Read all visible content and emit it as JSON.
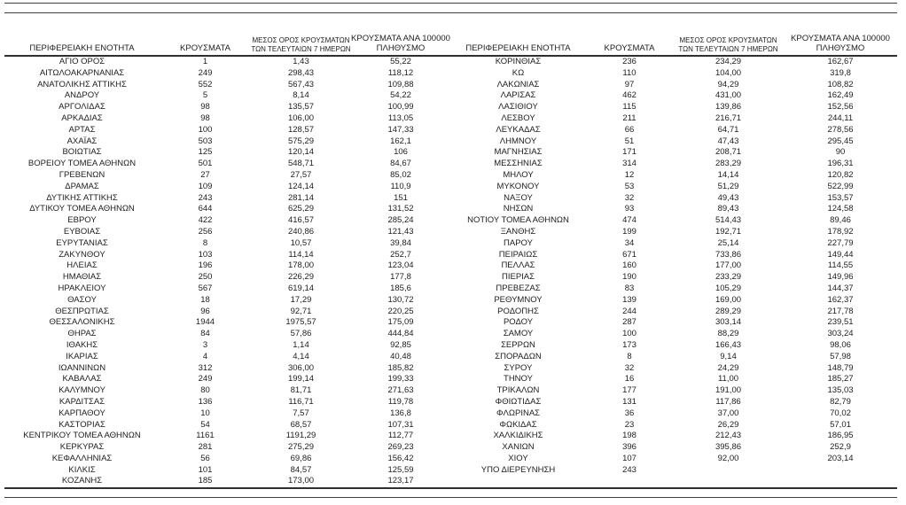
{
  "page": {
    "background_color": "#ffffff",
    "text_color": "#1d1d1d",
    "rule_color": "#3f3f3f"
  },
  "table": {
    "headers": {
      "region": "ΠΕΡΙΦΕΡΕΙΑΚΗ ΕΝΟΤΗΤΑ",
      "cases": "ΚΡΟΥΣΜΑΤΑ",
      "avg7_line1": "ΜΕΣΟΣ ΟΡΟΣ ΚΡΟΥΣΜΑΤΩΝ",
      "avg7_line2": "ΤΩΝ ΤΕΛΕΥΤΑΙΩΝ 7 ΗΜΕΡΩΝ",
      "per100k_line1": "ΚΡΟΥΣΜΑΤΑ ΑΝΑ 100000",
      "per100k_line2": "ΠΛΗΘΥΣΜΟ"
    },
    "left_rows": [
      [
        "ΑΓΙΟ ΟΡΟΣ",
        "1",
        "1,43",
        "55,22"
      ],
      [
        "ΑΙΤΩΛΟΑΚΑΡΝΑΝΙΑΣ",
        "249",
        "298,43",
        "118,12"
      ],
      [
        "ΑΝΑΤΟΛΙΚΗΣ ΑΤΤΙΚΗΣ",
        "552",
        "567,43",
        "109,88"
      ],
      [
        "ΑΝΔΡΟΥ",
        "5",
        "8,14",
        "54,22"
      ],
      [
        "ΑΡΓΟΛΙΔΑΣ",
        "98",
        "135,57",
        "100,99"
      ],
      [
        "ΑΡΚΑΔΙΑΣ",
        "98",
        "106,00",
        "113,05"
      ],
      [
        "ΑΡΤΑΣ",
        "100",
        "128,57",
        "147,33"
      ],
      [
        "ΑΧΑΪΑΣ",
        "503",
        "575,29",
        "162,1"
      ],
      [
        "ΒΟΙΩΤΙΑΣ",
        "125",
        "120,14",
        "106"
      ],
      [
        "ΒΟΡΕΙΟΥ ΤΟΜΕΑ ΑΘΗΝΩΝ",
        "501",
        "548,71",
        "84,67"
      ],
      [
        "ΓΡΕΒΕΝΩΝ",
        "27",
        "27,57",
        "85,02"
      ],
      [
        "ΔΡΑΜΑΣ",
        "109",
        "124,14",
        "110,9"
      ],
      [
        "ΔΥΤΙΚΗΣ ΑΤΤΙΚΗΣ",
        "243",
        "281,14",
        "151"
      ],
      [
        "ΔΥΤΙΚΟΥ ΤΟΜΕΑ ΑΘΗΝΩΝ",
        "644",
        "625,29",
        "131,52"
      ],
      [
        "ΕΒΡΟΥ",
        "422",
        "416,57",
        "285,24"
      ],
      [
        "ΕΥΒΟΙΑΣ",
        "256",
        "240,86",
        "121,43"
      ],
      [
        "ΕΥΡΥΤΑΝΙΑΣ",
        "8",
        "10,57",
        "39,84"
      ],
      [
        "ΖΑΚΥΝΘΟΥ",
        "103",
        "114,14",
        "252,7"
      ],
      [
        "ΗΛΕΙΑΣ",
        "196",
        "178,00",
        "123,04"
      ],
      [
        "ΗΜΑΘΙΑΣ",
        "250",
        "226,29",
        "177,8"
      ],
      [
        "ΗΡΑΚΛΕΙΟΥ",
        "567",
        "619,14",
        "185,6"
      ],
      [
        "ΘΑΣΟΥ",
        "18",
        "17,29",
        "130,72"
      ],
      [
        "ΘΕΣΠΡΩΤΙΑΣ",
        "96",
        "92,71",
        "220,25"
      ],
      [
        "ΘΕΣΣΑΛΟΝΙΚΗΣ",
        "1944",
        "1975,57",
        "175,09"
      ],
      [
        "ΘΗΡΑΣ",
        "84",
        "57,86",
        "444,84"
      ],
      [
        "ΙΘΑΚΗΣ",
        "3",
        "1,14",
        "92,85"
      ],
      [
        "ΙΚΑΡΙΑΣ",
        "4",
        "4,14",
        "40,48"
      ],
      [
        "ΙΩΑΝΝΙΝΩΝ",
        "312",
        "306,00",
        "185,82"
      ],
      [
        "ΚΑΒΑΛΑΣ",
        "249",
        "199,14",
        "199,33"
      ],
      [
        "ΚΑΛΥΜΝΟΥ",
        "80",
        "81,71",
        "271,63"
      ],
      [
        "ΚΑΡΔΙΤΣΑΣ",
        "136",
        "116,71",
        "119,78"
      ],
      [
        "ΚΑΡΠΑΘΟΥ",
        "10",
        "7,57",
        "136,8"
      ],
      [
        "ΚΑΣΤΟΡΙΑΣ",
        "54",
        "68,57",
        "107,31"
      ],
      [
        "ΚΕΝΤΡΙΚΟΥ ΤΟΜΕΑ ΑΘΗΝΩΝ",
        "1161",
        "1191,29",
        "112,77"
      ],
      [
        "ΚΕΡΚΥΡΑΣ",
        "281",
        "275,29",
        "269,23"
      ],
      [
        "ΚΕΦΑΛΛΗΝΙΑΣ",
        "56",
        "69,86",
        "156,42"
      ],
      [
        "ΚΙΛΚΙΣ",
        "101",
        "84,57",
        "125,59"
      ],
      [
        "ΚΟΖΑΝΗΣ",
        "185",
        "173,00",
        "123,17"
      ]
    ],
    "right_rows": [
      [
        "ΚΟΡΙΝΘΙΑΣ",
        "236",
        "234,29",
        "162,67"
      ],
      [
        "ΚΩ",
        "110",
        "104,00",
        "319,8"
      ],
      [
        "ΛΑΚΩΝΙΑΣ",
        "97",
        "94,29",
        "108,82"
      ],
      [
        "ΛΑΡΙΣΑΣ",
        "462",
        "431,00",
        "162,49"
      ],
      [
        "ΛΑΣΙΘΙΟΥ",
        "115",
        "139,86",
        "152,56"
      ],
      [
        "ΛΕΣΒΟΥ",
        "211",
        "216,71",
        "244,11"
      ],
      [
        "ΛΕΥΚΑΔΑΣ",
        "66",
        "64,71",
        "278,56"
      ],
      [
        "ΛΗΜΝΟΥ",
        "51",
        "47,43",
        "295,45"
      ],
      [
        "ΜΑΓΝΗΣΙΑΣ",
        "171",
        "208,71",
        "90"
      ],
      [
        "ΜΕΣΣΗΝΙΑΣ",
        "314",
        "283,29",
        "196,31"
      ],
      [
        "ΜΗΛΟΥ",
        "12",
        "14,14",
        "120,82"
      ],
      [
        "ΜΥΚΟΝΟΥ",
        "53",
        "51,29",
        "522,99"
      ],
      [
        "ΝΑΞΟΥ",
        "32",
        "49,43",
        "153,57"
      ],
      [
        "ΝΗΣΩΝ",
        "93",
        "89,43",
        "124,58"
      ],
      [
        "ΝΟΤΙΟΥ ΤΟΜΕΑ ΑΘΗΝΩΝ",
        "474",
        "514,43",
        "89,46"
      ],
      [
        "ΞΑΝΘΗΣ",
        "199",
        "192,71",
        "178,92"
      ],
      [
        "ΠΑΡΟΥ",
        "34",
        "25,14",
        "227,79"
      ],
      [
        "ΠΕΙΡΑΙΩΣ",
        "671",
        "733,86",
        "149,44"
      ],
      [
        "ΠΕΛΛΑΣ",
        "160",
        "177,00",
        "114,55"
      ],
      [
        "ΠΙΕΡΙΑΣ",
        "190",
        "233,29",
        "149,96"
      ],
      [
        "ΠΡΕΒΕΖΑΣ",
        "83",
        "105,29",
        "144,37"
      ],
      [
        "ΡΕΘΥΜΝΟΥ",
        "139",
        "169,00",
        "162,37"
      ],
      [
        "ΡΟΔΟΠΗΣ",
        "244",
        "289,29",
        "217,78"
      ],
      [
        "ΡΟΔΟΥ",
        "287",
        "303,14",
        "239,51"
      ],
      [
        "ΣΑΜΟΥ",
        "100",
        "88,29",
        "303,24"
      ],
      [
        "ΣΕΡΡΩΝ",
        "173",
        "166,43",
        "98,06"
      ],
      [
        "ΣΠΟΡΑΔΩΝ",
        "8",
        "9,14",
        "57,98"
      ],
      [
        "ΣΥΡΟΥ",
        "32",
        "24,29",
        "148,79"
      ],
      [
        "ΤΗΝΟΥ",
        "16",
        "11,00",
        "185,27"
      ],
      [
        "ΤΡΙΚΑΛΩΝ",
        "177",
        "191,00",
        "135,03"
      ],
      [
        "ΦΘΙΩΤΙΔΑΣ",
        "131",
        "117,86",
        "82,79"
      ],
      [
        "ΦΛΩΡΙΝΑΣ",
        "36",
        "37,00",
        "70,02"
      ],
      [
        "ΦΩΚΙΔΑΣ",
        "23",
        "26,29",
        "57,01"
      ],
      [
        "ΧΑΛΚΙΔΙΚΗΣ",
        "198",
        "212,43",
        "186,95"
      ],
      [
        "ΧΑΝΙΩΝ",
        "396",
        "395,86",
        "252,9"
      ],
      [
        "ΧΙΟΥ",
        "107",
        "92,00",
        "203,14"
      ],
      [
        "ΥΠΟ ΔΙΕΡΕΥΝΗΣΗ",
        "243",
        "",
        ""
      ]
    ]
  }
}
